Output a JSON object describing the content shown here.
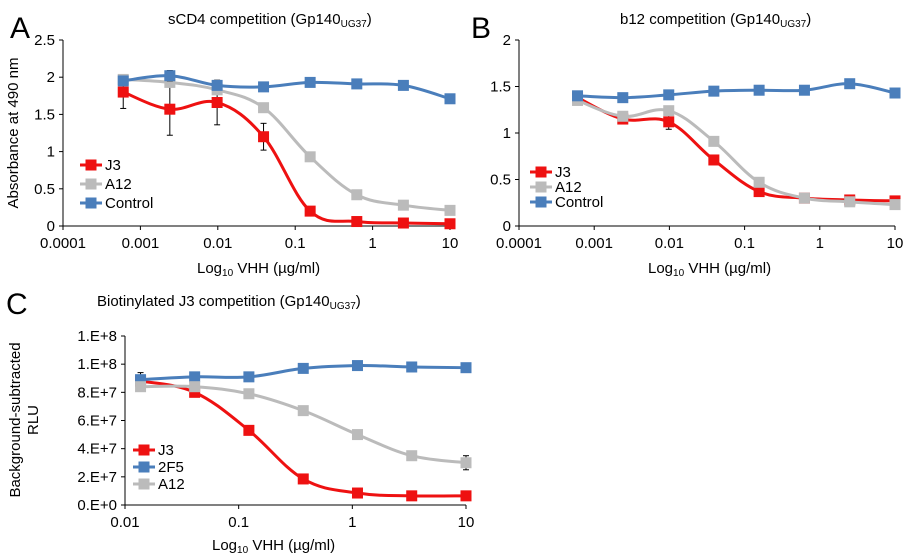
{
  "panels": {
    "A": {
      "letter": "A",
      "title_prefix": "sCD4 competition (Gp140",
      "title_sub": "UG37",
      "title_suffix": ")"
    },
    "B": {
      "letter": "B",
      "title_prefix": "b12 competition (Gp140",
      "title_sub": "UG37",
      "title_suffix": ")"
    },
    "C": {
      "letter": "C",
      "title_prefix": "Biotinylated J3 competition (Gp140",
      "title_sub": "UG37",
      "title_suffix": ")"
    }
  },
  "xaxis_label": {
    "prefix": "Log",
    "sub": "10",
    "suffix": " VHH (µg/ml)"
  },
  "colors": {
    "J3": "#ee1111",
    "A12": "#bbbbbb",
    "Control": "#4a7ebb",
    "2F5": "#4a7ebb",
    "errorbar": "#000000"
  },
  "chart_data": [
    {
      "id": "A",
      "type": "line",
      "title": "sCD4 competition (Gp140UG37)",
      "xlabel": "Log10 VHH (µg/ml)",
      "ylabel": "Absorbance at 490 nm",
      "xscale": "log",
      "xlim": [
        0.0001,
        10
      ],
      "ylim": [
        0,
        2.5
      ],
      "xticks": [
        0.0001,
        0.001,
        0.01,
        0.1,
        1,
        10
      ],
      "xtick_labels": [
        "0.0001",
        "0.001",
        "0.01",
        "0.1",
        "1",
        "10"
      ],
      "yticks": [
        0,
        0.5,
        1,
        1.5,
        2,
        2.5
      ],
      "ytick_labels": [
        "0",
        "0.5",
        "1",
        "1.5",
        "2",
        "2.5"
      ],
      "legend": "bottom-left",
      "x": [
        0.0006,
        0.0024,
        0.0098,
        0.039,
        0.156,
        0.625,
        2.5,
        10
      ],
      "series": [
        {
          "name": "J3",
          "values": [
            1.8,
            1.57,
            1.66,
            1.2,
            0.2,
            0.06,
            0.04,
            0.03
          ],
          "errors": [
            0.22,
            0.35,
            0.3,
            0.18,
            0.04,
            0.02,
            0.02,
            0.02
          ]
        },
        {
          "name": "A12",
          "values": [
            1.97,
            1.93,
            1.83,
            1.59,
            0.93,
            0.42,
            0.28,
            0.21
          ],
          "errors": [
            0.05,
            0.06,
            0.05,
            0.05,
            0.04,
            0.03,
            0.03,
            0.03
          ]
        },
        {
          "name": "Control",
          "values": [
            1.95,
            2.02,
            1.89,
            1.87,
            1.93,
            1.91,
            1.89,
            1.71
          ],
          "errors": [
            0.05,
            0.07,
            0.04,
            0.04,
            0.04,
            0.04,
            0.04,
            0.04
          ]
        }
      ]
    },
    {
      "id": "B",
      "type": "line",
      "title": "b12 competition (Gp140UG37)",
      "xlabel": "Log10 VHH (µg/ml)",
      "ylabel": "",
      "xscale": "log",
      "xlim": [
        0.0001,
        10
      ],
      "ylim": [
        0,
        2
      ],
      "xticks": [
        0.0001,
        0.001,
        0.01,
        0.1,
        1,
        10
      ],
      "xtick_labels": [
        "0.0001",
        "0.001",
        "0.01",
        "0.1",
        "1",
        "10"
      ],
      "yticks": [
        0,
        0.5,
        1,
        1.5,
        2
      ],
      "ytick_labels": [
        "0",
        "0.5",
        "1",
        "1.5",
        "2"
      ],
      "legend": "bottom-left",
      "x": [
        0.0006,
        0.0024,
        0.0098,
        0.039,
        0.156,
        0.625,
        2.5,
        10
      ],
      "series": [
        {
          "name": "J3",
          "values": [
            1.38,
            1.15,
            1.12,
            0.71,
            0.37,
            0.3,
            0.28,
            0.27
          ],
          "errors": [
            0.04,
            0.04,
            0.08,
            0.05,
            0.03,
            0.03,
            0.03,
            0.03
          ]
        },
        {
          "name": "A12",
          "values": [
            1.35,
            1.18,
            1.24,
            0.91,
            0.47,
            0.3,
            0.26,
            0.23
          ],
          "errors": [
            0.04,
            0.04,
            0.04,
            0.04,
            0.03,
            0.03,
            0.03,
            0.03
          ]
        },
        {
          "name": "Control",
          "values": [
            1.4,
            1.38,
            1.41,
            1.45,
            1.46,
            1.46,
            1.53,
            1.43
          ],
          "errors": [
            0.03,
            0.03,
            0.03,
            0.03,
            0.03,
            0.03,
            0.03,
            0.03
          ]
        }
      ]
    },
    {
      "id": "C",
      "type": "line",
      "title": "Biotinylated J3 competition (Gp140UG37)",
      "xlabel": "Log10 VHH (µg/ml)",
      "ylabel": "Background-subtracted RLU",
      "xscale": "log",
      "xlim": [
        0.01,
        10
      ],
      "ylim": [
        0,
        120000000
      ],
      "xticks": [
        0.01,
        0.1,
        1,
        10
      ],
      "xtick_labels": [
        "0.01",
        "0.1",
        "1",
        "10"
      ],
      "yticks": [
        0,
        20000000,
        40000000,
        60000000,
        80000000,
        100000000,
        120000000
      ],
      "ytick_labels": [
        "0.E+0",
        "2.E+7",
        "4.E+7",
        "6.E+7",
        "8.E+7",
        "1.E+8",
        "1.E+8"
      ],
      "legend": "bottom-left",
      "x": [
        0.0137,
        0.041,
        0.123,
        0.37,
        1.11,
        3.33,
        10
      ],
      "series": [
        {
          "name": "J3",
          "values": [
            88000000,
            80000000,
            53000000,
            18500000,
            8500000,
            6500000,
            6500000
          ],
          "errors": [
            6000000,
            2000000,
            2000000,
            1500000,
            1000000,
            800000,
            800000
          ]
        },
        {
          "name": "2F5",
          "values": [
            89000000,
            91000000,
            91000000,
            97000000,
            99000000,
            98000000,
            97500000
          ],
          "errors": [
            1500000,
            1500000,
            1500000,
            1500000,
            1500000,
            1500000,
            1500000
          ]
        },
        {
          "name": "A12",
          "values": [
            84000000,
            84000000,
            79000000,
            67000000,
            50000000,
            35000000,
            30000000
          ],
          "errors": [
            2000000,
            2000000,
            2000000,
            2000000,
            2000000,
            2000000,
            5000000
          ]
        }
      ]
    }
  ]
}
